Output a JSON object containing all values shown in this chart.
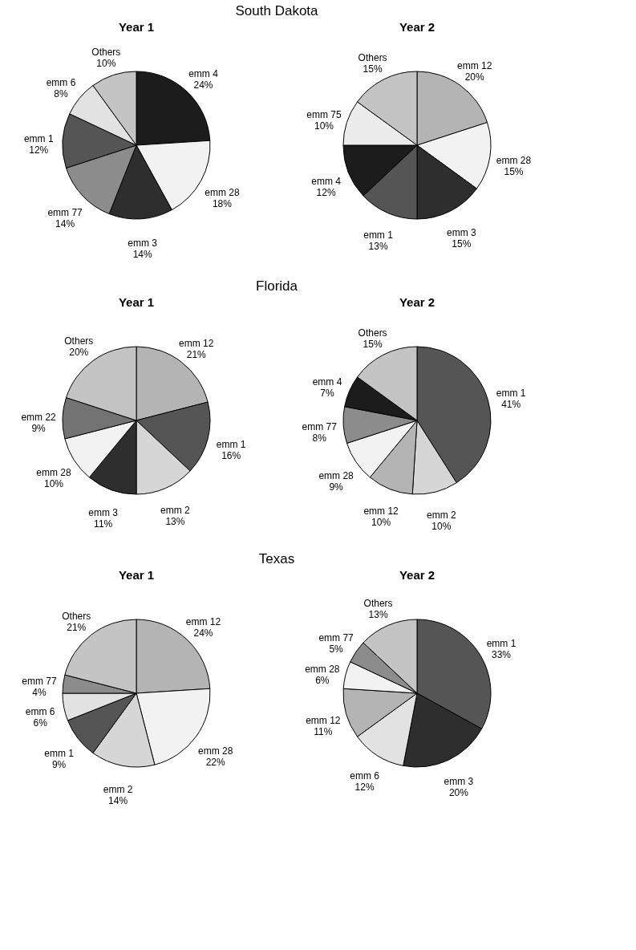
{
  "chart_data": [
    {
      "type": "pie",
      "title": "Year 1",
      "annotations": [
        "South Dakota"
      ],
      "categories": [
        "emm 4",
        "emm 28",
        "emm 3",
        "emm 77",
        "emm 1",
        "emm 6",
        "Others"
      ],
      "values": [
        24,
        18,
        14,
        14,
        12,
        8,
        10
      ],
      "value_labels": [
        "24%",
        "18%",
        "14%",
        "14%",
        "12%",
        "8%",
        "10%"
      ],
      "colors": [
        "#1c1c1c",
        "#f2f2f2",
        "#2e2e2e",
        "#8c8c8c",
        "#555555",
        "#e2e2e2",
        "#c4c4c4"
      ]
    },
    {
      "type": "pie",
      "title": "Year 2",
      "categories": [
        "emm 12",
        "emm 28",
        "emm 3",
        "emm 1",
        "emm 4",
        "emm 75",
        "Others"
      ],
      "values": [
        20,
        15,
        15,
        13,
        12,
        10,
        15
      ],
      "value_labels": [
        "20%",
        "15%",
        "15%",
        "13%",
        "12%",
        "10%",
        "15%"
      ],
      "colors": [
        "#b4b4b4",
        "#f2f2f2",
        "#2e2e2e",
        "#555555",
        "#1c1c1c",
        "#ececec",
        "#c4c4c4"
      ]
    },
    {
      "type": "pie",
      "title": "Year 1",
      "annotations": [
        "Florida"
      ],
      "categories": [
        "emm 12",
        "emm 1",
        "emm 2",
        "emm 3",
        "emm 28",
        "emm 22",
        "Others"
      ],
      "values": [
        21,
        16,
        13,
        11,
        10,
        9,
        20
      ],
      "value_labels": [
        "21%",
        "16%",
        "13%",
        "11%",
        "10%",
        "9%",
        "20%"
      ],
      "colors": [
        "#b4b4b4",
        "#555555",
        "#d6d6d6",
        "#2e2e2e",
        "#f2f2f2",
        "#737373",
        "#c4c4c4"
      ]
    },
    {
      "type": "pie",
      "title": "Year 2",
      "categories": [
        "emm 1",
        "emm 2",
        "emm 12",
        "emm 28",
        "emm 77",
        "emm 4",
        "Others"
      ],
      "values": [
        41,
        10,
        10,
        9,
        8,
        7,
        15
      ],
      "value_labels": [
        "41%",
        "10%",
        "10%",
        "9%",
        "8%",
        "7%",
        "15%"
      ],
      "colors": [
        "#555555",
        "#d6d6d6",
        "#b4b4b4",
        "#f2f2f2",
        "#8c8c8c",
        "#1c1c1c",
        "#c4c4c4"
      ]
    },
    {
      "type": "pie",
      "title": "Year 1",
      "annotations": [
        "Texas"
      ],
      "categories": [
        "emm 12",
        "emm 28",
        "emm 2",
        "emm 1",
        "emm 6",
        "emm 77",
        "Others"
      ],
      "values": [
        24,
        22,
        14,
        9,
        6,
        4,
        21
      ],
      "value_labels": [
        "24%",
        "22%",
        "14%",
        "9%",
        "6%",
        "4%",
        "21%"
      ],
      "colors": [
        "#b4b4b4",
        "#f2f2f2",
        "#d6d6d6",
        "#555555",
        "#e2e2e2",
        "#8c8c8c",
        "#c4c4c4"
      ]
    },
    {
      "type": "pie",
      "title": "Year 2",
      "categories": [
        "emm 1",
        "emm 3",
        "emm 6",
        "emm 12",
        "emm 28",
        "emm 77",
        "Others"
      ],
      "values": [
        33,
        20,
        12,
        11,
        6,
        5,
        13
      ],
      "value_labels": [
        "33%",
        "20%",
        "12%",
        "11%",
        "6%",
        "5%",
        "13%"
      ],
      "colors": [
        "#555555",
        "#2e2e2e",
        "#e2e2e2",
        "#b4b4b4",
        "#f2f2f2",
        "#8c8c8c",
        "#c4c4c4"
      ]
    }
  ]
}
